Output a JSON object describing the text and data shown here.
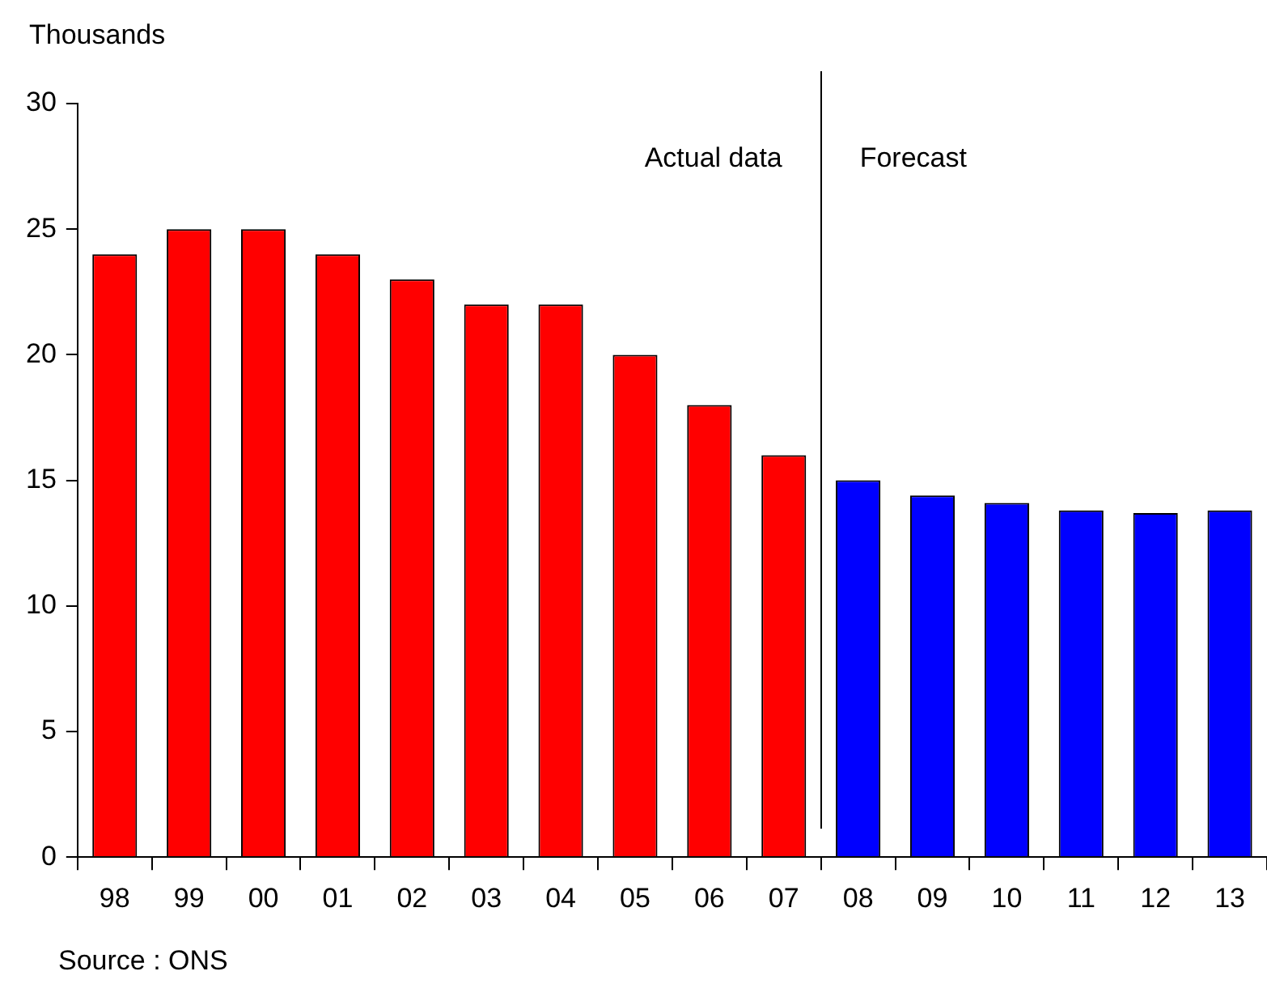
{
  "chart_data": {
    "type": "bar",
    "ylabel": "Thousands",
    "categories": [
      "98",
      "99",
      "00",
      "01",
      "02",
      "03",
      "04",
      "05",
      "06",
      "07",
      "08",
      "09",
      "10",
      "11",
      "12",
      "13"
    ],
    "series": [
      {
        "color": "#ff0000",
        "values": [
          24,
          25,
          25,
          24,
          23,
          22,
          22,
          20,
          18,
          16,
          null,
          null,
          null,
          null,
          null,
          null
        ]
      },
      {
        "color": "#0000ff",
        "values": [
          null,
          null,
          null,
          null,
          null,
          null,
          null,
          null,
          null,
          null,
          15.0,
          14.4,
          14.1,
          13.8,
          13.7,
          13.8
        ]
      }
    ],
    "ylim": [
      0,
      30
    ],
    "yticks": [
      0,
      5,
      10,
      15,
      20,
      25,
      30
    ],
    "grid": false,
    "legend": false,
    "annotations": [
      "Actual data",
      "Forecast",
      "Source : ONS"
    ]
  }
}
